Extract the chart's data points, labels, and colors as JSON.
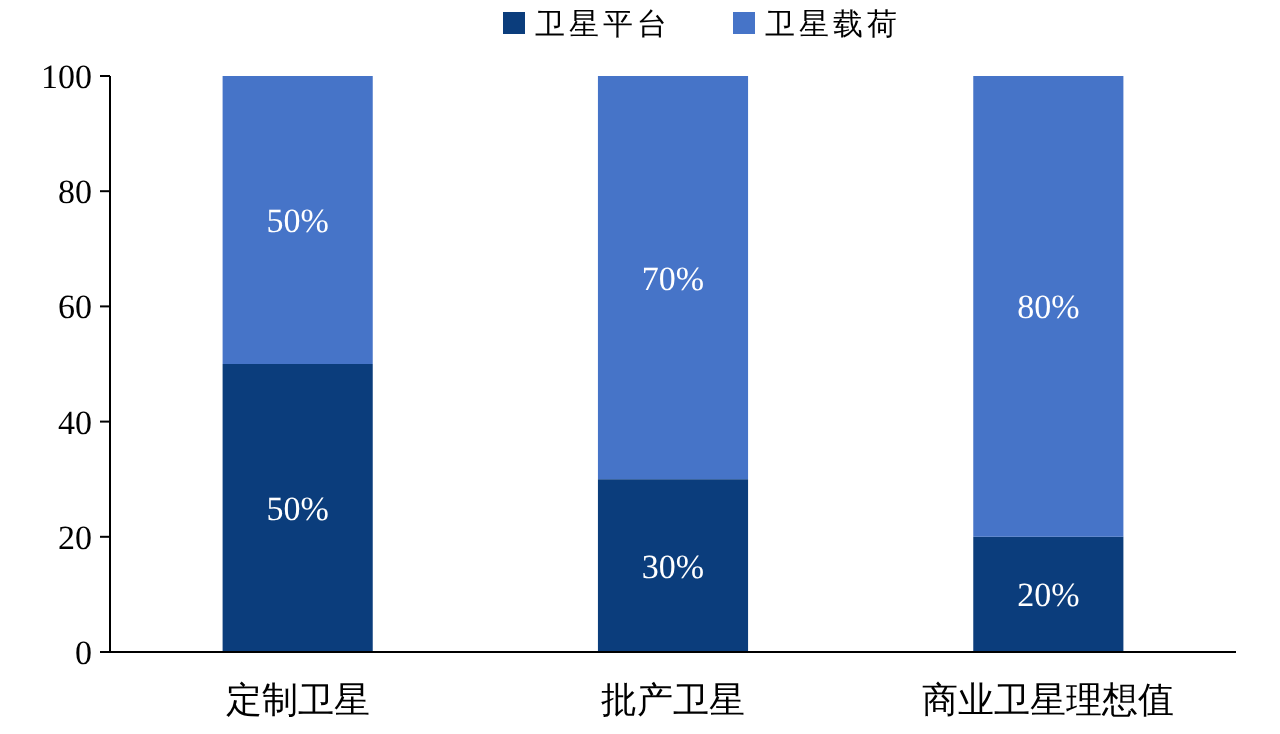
{
  "chart_data": {
    "type": "bar",
    "stacked": true,
    "categories": [
      "定制卫星",
      "批产卫星",
      "商业卫星理想值"
    ],
    "series": [
      {
        "name": "卫星平台",
        "color": "#0b3d7c",
        "values": [
          50,
          30,
          20
        ],
        "value_labels": [
          "50%",
          "30%",
          "20%"
        ]
      },
      {
        "name": "卫星载荷",
        "color": "#4674c8",
        "values": [
          50,
          70,
          80
        ],
        "value_labels": [
          "50%",
          "70%",
          "80%"
        ]
      }
    ],
    "ylim": [
      0,
      100
    ],
    "yticks": [
      0,
      20,
      40,
      60,
      80,
      100
    ],
    "legend": "top"
  }
}
